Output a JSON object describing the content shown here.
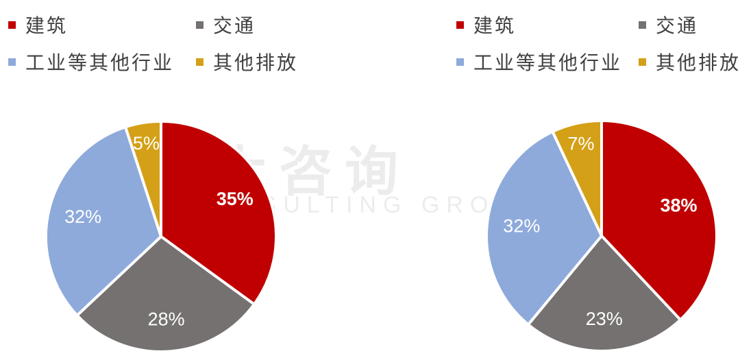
{
  "legend": [
    {
      "label": "建筑",
      "color": "#C00000"
    },
    {
      "label": "交通",
      "color": "#767171"
    },
    {
      "label": "工业等其他行业",
      "color": "#8EAADB"
    },
    {
      "label": "其他排放",
      "color": "#D4A017"
    }
  ],
  "watermark": {
    "main": "中大咨询",
    "sub": "CONSULTING GROUP"
  },
  "chart_data": [
    {
      "type": "pie",
      "categories": [
        "建筑",
        "交通",
        "工业等其他行业",
        "其他排放"
      ],
      "values": [
        35,
        28,
        32,
        5
      ],
      "labels": [
        "35%",
        "28%",
        "32%",
        "5%"
      ],
      "colors": [
        "#C00000",
        "#767171",
        "#8EAADB",
        "#D4A017"
      ],
      "legend": "top"
    },
    {
      "type": "pie",
      "categories": [
        "建筑",
        "交通",
        "工业等其他行业",
        "其他排放"
      ],
      "values": [
        38,
        23,
        32,
        7
      ],
      "labels": [
        "38%",
        "23%",
        "32%",
        "7%"
      ],
      "colors": [
        "#C00000",
        "#767171",
        "#8EAADB",
        "#D4A017"
      ],
      "legend": "top"
    }
  ]
}
